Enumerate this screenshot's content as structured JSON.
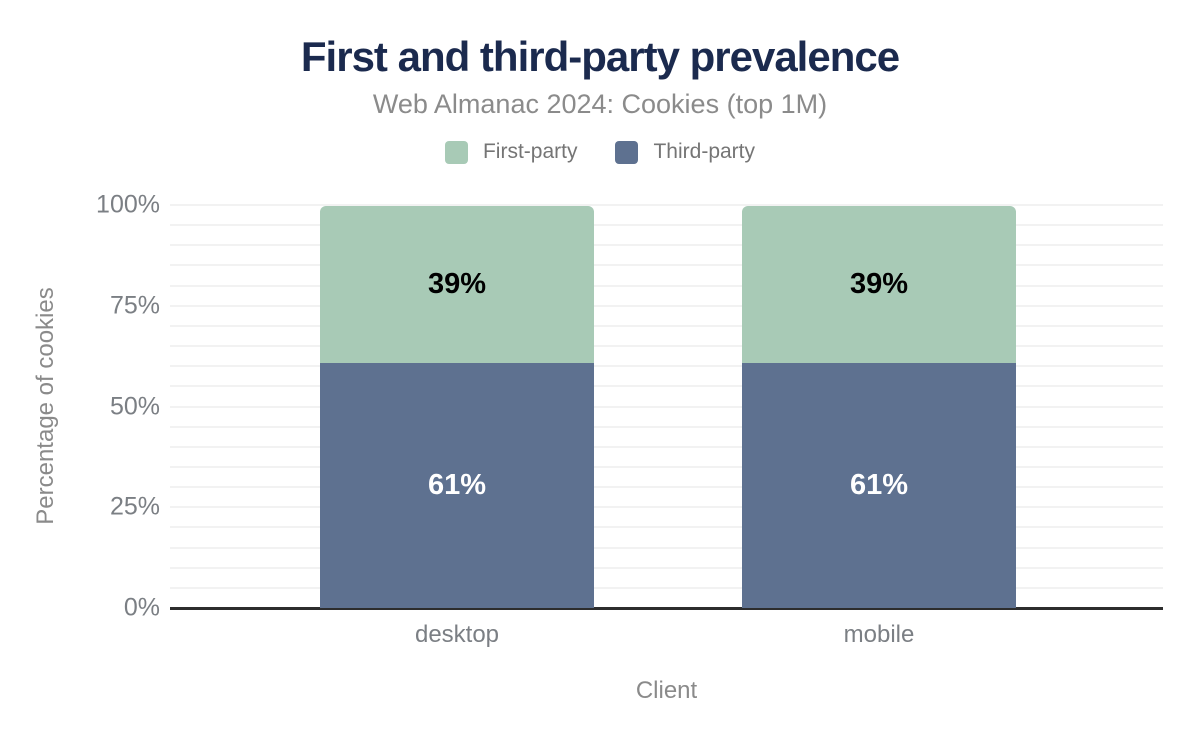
{
  "chart_data": {
    "type": "bar",
    "stacked": true,
    "title": "First and third-party prevalence",
    "subtitle": "Web Almanac 2024: Cookies (top 1M)",
    "xlabel": "Client",
    "ylabel": "Percentage of cookies",
    "categories": [
      "desktop",
      "mobile"
    ],
    "series": [
      {
        "name": "First-party",
        "values": [
          39,
          39
        ],
        "unit": "%",
        "color": "#a8cab6",
        "label_color": "#000000"
      },
      {
        "name": "Third-party",
        "values": [
          61,
          61
        ],
        "unit": "%",
        "color": "#5e7190",
        "label_color": "#ffffff"
      }
    ],
    "ylim": [
      0,
      100
    ],
    "yticks": [
      {
        "label": "0%",
        "value": 0
      },
      {
        "label": "25%",
        "value": 25
      },
      {
        "label": "50%",
        "value": 50
      },
      {
        "label": "75%",
        "value": 75
      },
      {
        "label": "100%",
        "value": 100
      }
    ],
    "grid": {
      "horizontal": true,
      "minor_step_percent": 5,
      "color": "#f2f2f2"
    },
    "legend_position": "top",
    "colors": {
      "title": "#1b2a4e",
      "subtitle": "#8b8b8b",
      "axis_line": "#2d2d2d",
      "tick_text": "#7b7f84",
      "axis_title_text": "#8a8a8a",
      "legend_text": "#757575",
      "background": "#ffffff"
    }
  }
}
